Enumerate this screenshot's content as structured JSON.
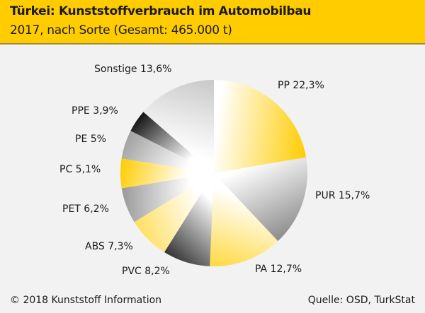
{
  "header": {
    "title": "Türkei: Kunststoffverbrauch im Automobilbau",
    "subtitle": "2017, nach Sorte (Gesamt: 465.000 t)"
  },
  "footer": {
    "copyright": "© 2018 Kunststoff Information",
    "source": "Quelle: OSD, TurkStat"
  },
  "chart_data": {
    "type": "pie",
    "title": "Türkei: Kunststoffverbrauch im Automobilbau",
    "subtitle": "2017, nach Sorte (Gesamt: 465.000 t)",
    "unit": "%",
    "slices": [
      {
        "name": "PP",
        "value": 22.3,
        "label": "PP 22,3%",
        "color": "#ffcc00"
      },
      {
        "name": "PUR",
        "value": 15.7,
        "label": "PUR 15,7%",
        "color": "#8c8c8c"
      },
      {
        "name": "PA",
        "value": 12.7,
        "label": "PA 12,7%",
        "color": "#ffd940"
      },
      {
        "name": "PVC",
        "value": 8.2,
        "label": "PVC 8,2%",
        "color": "#333333"
      },
      {
        "name": "ABS",
        "value": 7.3,
        "label": "ABS 7,3%",
        "color": "#ffdf60"
      },
      {
        "name": "PET",
        "value": 6.2,
        "label": "PET 6,2%",
        "color": "#999999"
      },
      {
        "name": "PC",
        "value": 5.1,
        "label": "PC 5,1%",
        "color": "#ffcc00"
      },
      {
        "name": "PE",
        "value": 5,
        "label": "PE 5%",
        "color": "#a0a0a0"
      },
      {
        "name": "PPE",
        "value": 3.9,
        "label": "PPE 3,9%",
        "color": "#111111"
      },
      {
        "name": "Sonstige",
        "value": 13.6,
        "label": "Sonstige 13,6%",
        "color": "#c8c8c8"
      }
    ]
  }
}
